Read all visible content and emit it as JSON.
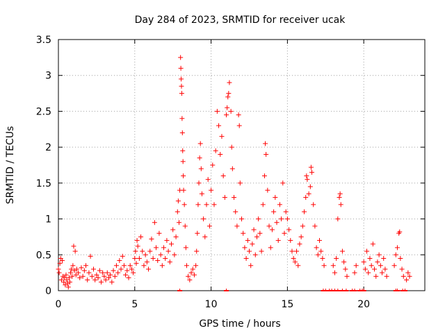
{
  "chart_data": {
    "type": "scatter",
    "title": "Day 284 of 2023, SRMTID for receiver ucak",
    "xlabel": "GPS time / hours",
    "ylabel": "SRMTID / TECUs",
    "xlim": [
      0,
      24
    ],
    "ylim": [
      0,
      3.5
    ],
    "xticks": [
      0,
      5,
      10,
      15,
      20
    ],
    "xtick_labels": [
      "0",
      "5",
      "10",
      "15",
      "20"
    ],
    "yticks": [
      0,
      0.5,
      1,
      1.5,
      2,
      2.5,
      3,
      3.5
    ],
    "ytick_labels": [
      "0",
      "0.5",
      "1",
      "1.5",
      "2",
      "2.5",
      "3",
      "3.5"
    ],
    "grid": true,
    "marker": "plus",
    "series": [
      {
        "name": "SRMTID",
        "color": "#ff0000",
        "points": [
          [
            0.0,
            0.3
          ],
          [
            0.05,
            0.25
          ],
          [
            0.1,
            0.38
          ],
          [
            0.15,
            0.45
          ],
          [
            0.2,
            0.15
          ],
          [
            0.25,
            0.42
          ],
          [
            0.3,
            0.2
          ],
          [
            0.35,
            0.12
          ],
          [
            0.4,
            0.18
          ],
          [
            0.45,
            0.08
          ],
          [
            0.5,
            0.22
          ],
          [
            0.55,
            0.15
          ],
          [
            0.6,
            0.1
          ],
          [
            0.65,
            0.05
          ],
          [
            0.7,
            0.18
          ],
          [
            0.75,
            0.12
          ],
          [
            0.8,
            0.25
          ],
          [
            0.85,
            0.3
          ],
          [
            0.9,
            0.2
          ],
          [
            0.95,
            0.35
          ],
          [
            1.0,
            0.62
          ],
          [
            1.05,
            0.28
          ],
          [
            1.1,
            0.55
          ],
          [
            1.15,
            0.22
          ],
          [
            1.2,
            0.3
          ],
          [
            1.3,
            0.25
          ],
          [
            1.4,
            0.18
          ],
          [
            1.5,
            0.32
          ],
          [
            1.6,
            0.2
          ],
          [
            1.7,
            0.28
          ],
          [
            1.8,
            0.35
          ],
          [
            1.9,
            0.15
          ],
          [
            2.0,
            0.25
          ],
          [
            2.1,
            0.48
          ],
          [
            2.2,
            0.2
          ],
          [
            2.3,
            0.3
          ],
          [
            2.4,
            0.15
          ],
          [
            2.5,
            0.22
          ],
          [
            2.6,
            0.18
          ],
          [
            2.7,
            0.28
          ],
          [
            2.8,
            0.12
          ],
          [
            2.9,
            0.25
          ],
          [
            3.0,
            0.2
          ],
          [
            3.1,
            0.15
          ],
          [
            3.2,
            0.25
          ],
          [
            3.3,
            0.18
          ],
          [
            3.4,
            0.22
          ],
          [
            3.5,
            0.12
          ],
          [
            3.6,
            0.28
          ],
          [
            3.7,
            0.2
          ],
          [
            3.8,
            0.35
          ],
          [
            3.9,
            0.25
          ],
          [
            4.0,
            0.42
          ],
          [
            4.1,
            0.3
          ],
          [
            4.2,
            0.48
          ],
          [
            4.3,
            0.35
          ],
          [
            4.4,
            0.22
          ],
          [
            4.5,
            0.28
          ],
          [
            4.6,
            0.18
          ],
          [
            4.7,
            0.35
          ],
          [
            4.8,
            0.3
          ],
          [
            4.9,
            0.25
          ],
          [
            5.0,
            0.45
          ],
          [
            5.05,
            0.55
          ],
          [
            5.1,
            0.38
          ],
          [
            5.15,
            0.7
          ],
          [
            5.2,
            0.62
          ],
          [
            5.3,
            0.45
          ],
          [
            5.4,
            0.75
          ],
          [
            5.5,
            0.55
          ],
          [
            5.6,
            0.35
          ],
          [
            5.7,
            0.5
          ],
          [
            5.8,
            0.4
          ],
          [
            5.9,
            0.3
          ],
          [
            6.0,
            0.55
          ],
          [
            6.1,
            0.72
          ],
          [
            6.2,
            0.45
          ],
          [
            6.3,
            0.95
          ],
          [
            6.4,
            0.6
          ],
          [
            6.5,
            0.42
          ],
          [
            6.6,
            0.8
          ],
          [
            6.7,
            0.5
          ],
          [
            6.8,
            0.35
          ],
          [
            6.9,
            0.6
          ],
          [
            7.0,
            0.45
          ],
          [
            7.1,
            0.7
          ],
          [
            7.2,
            0.55
          ],
          [
            7.3,
            0.4
          ],
          [
            7.4,
            0.65
          ],
          [
            7.5,
            0.85
          ],
          [
            7.6,
            0.5
          ],
          [
            7.7,
            0.75
          ],
          [
            7.8,
            1.1
          ],
          [
            7.85,
            1.25
          ],
          [
            7.9,
            0.95
          ],
          [
            7.95,
            1.4
          ],
          [
            8.0,
            3.25
          ],
          [
            8.02,
            3.1
          ],
          [
            8.04,
            2.95
          ],
          [
            8.06,
            2.85
          ],
          [
            8.08,
            2.75
          ],
          [
            8.1,
            2.4
          ],
          [
            8.12,
            2.2
          ],
          [
            8.14,
            1.95
          ],
          [
            8.16,
            1.8
          ],
          [
            8.18,
            1.6
          ],
          [
            8.2,
            1.4
          ],
          [
            8.25,
            1.2
          ],
          [
            8.3,
            0.9
          ],
          [
            8.35,
            0.6
          ],
          [
            8.4,
            0.35
          ],
          [
            8.5,
            0.2
          ],
          [
            8.6,
            0.15
          ],
          [
            8.7,
            0.25
          ],
          [
            8.8,
            0.3
          ],
          [
            8.9,
            0.22
          ],
          [
            9.0,
            0.35
          ],
          [
            9.05,
            0.55
          ],
          [
            9.1,
            0.8
          ],
          [
            9.15,
            1.2
          ],
          [
            9.2,
            1.5
          ],
          [
            9.25,
            1.85
          ],
          [
            9.3,
            2.05
          ],
          [
            9.35,
            1.7
          ],
          [
            9.4,
            1.35
          ],
          [
            9.5,
            1.0
          ],
          [
            9.6,
            0.75
          ],
          [
            9.7,
            1.2
          ],
          [
            9.8,
            1.55
          ],
          [
            9.9,
            0.9
          ],
          [
            10.0,
            1.4
          ],
          [
            10.1,
            1.75
          ],
          [
            10.2,
            1.2
          ],
          [
            10.3,
            1.95
          ],
          [
            10.4,
            2.5
          ],
          [
            10.5,
            2.3
          ],
          [
            10.6,
            1.9
          ],
          [
            10.7,
            2.15
          ],
          [
            10.8,
            1.6
          ],
          [
            10.9,
            1.3
          ],
          [
            11.0,
            2.45
          ],
          [
            11.05,
            2.55
          ],
          [
            11.1,
            2.7
          ],
          [
            11.15,
            2.75
          ],
          [
            11.2,
            2.9
          ],
          [
            11.3,
            2.5
          ],
          [
            11.35,
            2.0
          ],
          [
            11.4,
            1.7
          ],
          [
            11.5,
            1.3
          ],
          [
            11.6,
            1.1
          ],
          [
            11.7,
            0.9
          ],
          [
            11.8,
            2.45
          ],
          [
            11.85,
            2.3
          ],
          [
            11.9,
            1.5
          ],
          [
            12.0,
            1.0
          ],
          [
            12.1,
            0.8
          ],
          [
            12.2,
            0.6
          ],
          [
            12.3,
            0.45
          ],
          [
            12.4,
            0.7
          ],
          [
            12.5,
            0.55
          ],
          [
            12.6,
            0.35
          ],
          [
            12.7,
            0.65
          ],
          [
            12.8,
            0.85
          ],
          [
            12.9,
            0.5
          ],
          [
            13.0,
            0.75
          ],
          [
            13.1,
            1.0
          ],
          [
            13.2,
            0.8
          ],
          [
            13.3,
            0.55
          ],
          [
            13.4,
            1.2
          ],
          [
            13.5,
            1.6
          ],
          [
            13.55,
            2.05
          ],
          [
            13.6,
            1.9
          ],
          [
            13.7,
            1.4
          ],
          [
            13.8,
            0.9
          ],
          [
            13.9,
            0.6
          ],
          [
            14.0,
            0.85
          ],
          [
            14.1,
            1.1
          ],
          [
            14.2,
            1.3
          ],
          [
            14.3,
            0.95
          ],
          [
            14.4,
            0.7
          ],
          [
            14.5,
            1.2
          ],
          [
            14.6,
            1.0
          ],
          [
            14.7,
            1.5
          ],
          [
            14.8,
            0.8
          ],
          [
            14.9,
            1.1
          ],
          [
            15.0,
            1.0
          ],
          [
            15.1,
            0.85
          ],
          [
            15.2,
            0.7
          ],
          [
            15.3,
            0.55
          ],
          [
            15.4,
            0.45
          ],
          [
            15.5,
            0.4
          ],
          [
            15.6,
            0.55
          ],
          [
            15.7,
            0.35
          ],
          [
            15.8,
            0.65
          ],
          [
            15.9,
            0.75
          ],
          [
            16.0,
            0.9
          ],
          [
            16.1,
            1.1
          ],
          [
            16.2,
            1.3
          ],
          [
            16.25,
            1.6
          ],
          [
            16.3,
            1.55
          ],
          [
            16.4,
            1.35
          ],
          [
            16.5,
            1.45
          ],
          [
            16.55,
            1.72
          ],
          [
            16.6,
            1.65
          ],
          [
            16.7,
            1.2
          ],
          [
            16.8,
            0.9
          ],
          [
            16.9,
            0.6
          ],
          [
            17.0,
            0.5
          ],
          [
            17.1,
            0.7
          ],
          [
            17.2,
            0.55
          ],
          [
            17.3,
            0.45
          ],
          [
            17.4,
            0.35
          ],
          [
            18.0,
            0.35
          ],
          [
            18.1,
            0.25
          ],
          [
            18.2,
            0.45
          ],
          [
            18.3,
            1.0
          ],
          [
            18.4,
            1.3
          ],
          [
            18.45,
            1.35
          ],
          [
            18.5,
            1.2
          ],
          [
            18.6,
            0.55
          ],
          [
            18.7,
            0.4
          ],
          [
            18.8,
            0.3
          ],
          [
            18.9,
            0.2
          ],
          [
            19.4,
            0.25
          ],
          [
            19.5,
            0.35
          ],
          [
            20.0,
            0.4
          ],
          [
            20.1,
            0.3
          ],
          [
            20.2,
            0.55
          ],
          [
            20.3,
            0.25
          ],
          [
            20.4,
            0.45
          ],
          [
            20.5,
            0.35
          ],
          [
            20.6,
            0.65
          ],
          [
            20.7,
            0.3
          ],
          [
            20.8,
            0.2
          ],
          [
            20.9,
            0.4
          ],
          [
            21.0,
            0.5
          ],
          [
            21.1,
            0.35
          ],
          [
            21.2,
            0.25
          ],
          [
            21.3,
            0.45
          ],
          [
            21.4,
            0.3
          ],
          [
            21.5,
            0.2
          ],
          [
            22.0,
            0.35
          ],
          [
            22.1,
            0.5
          ],
          [
            22.2,
            0.6
          ],
          [
            22.3,
            0.8
          ],
          [
            22.35,
            0.82
          ],
          [
            22.4,
            0.45
          ],
          [
            22.5,
            0.3
          ],
          [
            22.6,
            0.2
          ],
          [
            22.8,
            0.15
          ],
          [
            22.9,
            0.25
          ],
          [
            23.0,
            0.2
          ]
        ]
      }
    ],
    "baseline_markers_x": [
      7.95,
      11.0,
      17.35,
      17.5,
      17.75,
      17.9,
      18.1,
      18.3,
      18.6,
      18.85,
      19.25,
      19.4,
      19.75,
      19.9,
      20.0,
      22.1,
      22.2,
      22.55,
      22.7
    ]
  }
}
